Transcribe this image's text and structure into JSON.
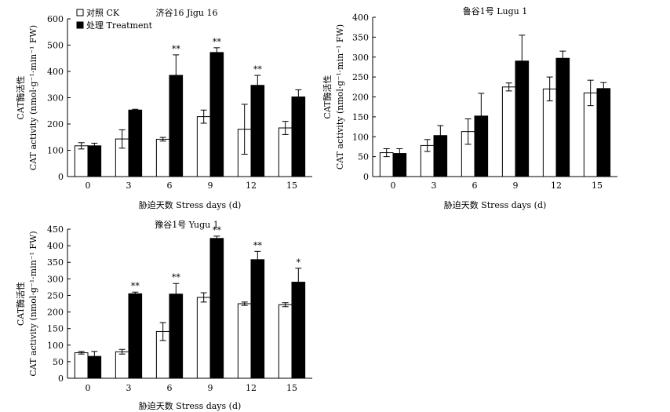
{
  "legend": {
    "ck_label": "对照 CK",
    "treatment_label": "处理 Treatment"
  },
  "colors": {
    "ck_fill": "#ffffff",
    "treatment_fill": "#000000",
    "axis": "#000000"
  },
  "chart_data": [
    {
      "type": "bar",
      "title": "济谷16 Jigu 16",
      "ylabel_cn": "CAT酶活性",
      "ylabel_en": "CAT activity (nmol·g⁻¹·min⁻¹ FW)",
      "xlabel": "胁迫天数 Stress days (d)",
      "categories": [
        "0",
        "3",
        "6",
        "9",
        "12",
        "15"
      ],
      "ylim": [
        0,
        600
      ],
      "yticks": [
        0,
        100,
        200,
        300,
        400,
        500,
        600
      ],
      "legend": "top-left inside",
      "series": [
        {
          "name": "对照 CK",
          "values": [
            117,
            143,
            142,
            228,
            180,
            185
          ],
          "errors": [
            12,
            35,
            7,
            25,
            95,
            25
          ]
        },
        {
          "name": "处理 Treatment",
          "values": [
            117,
            253,
            385,
            472,
            347,
            303
          ],
          "errors": [
            10,
            3,
            78,
            18,
            38,
            27
          ]
        }
      ],
      "significance": [
        "",
        "",
        "**",
        "**",
        "**",
        ""
      ]
    },
    {
      "type": "bar",
      "title": "鲁谷1号 Lugu 1",
      "ylabel_cn": "CAT酶活性",
      "ylabel_en": "CAT activity (nmol·g⁻¹·min⁻¹ FW)",
      "xlabel": "胁迫天数 Stress days (d)",
      "categories": [
        "0",
        "3",
        "6",
        "9",
        "12",
        "15"
      ],
      "ylim": [
        0,
        400
      ],
      "yticks": [
        0,
        50,
        100,
        150,
        200,
        250,
        300,
        350,
        400
      ],
      "series": [
        {
          "name": "对照 CK",
          "values": [
            60,
            78,
            113,
            225,
            220,
            210
          ],
          "errors": [
            10,
            15,
            32,
            10,
            30,
            32
          ]
        },
        {
          "name": "处理 Treatment",
          "values": [
            58,
            103,
            152,
            290,
            297,
            221
          ],
          "errors": [
            12,
            25,
            57,
            65,
            18,
            15
          ]
        }
      ],
      "significance": [
        "",
        "",
        "",
        "",
        "",
        ""
      ]
    },
    {
      "type": "bar",
      "title": "豫谷1号 Yugu 1",
      "ylabel_cn": "CAT酶活性",
      "ylabel_en": "CAT activity (nmol·g⁻¹·min⁻¹ FW)",
      "xlabel": "胁迫天数 Stress days (d)",
      "categories": [
        "0",
        "3",
        "6",
        "9",
        "12",
        "15"
      ],
      "ylim": [
        0,
        450
      ],
      "yticks": [
        0,
        50,
        100,
        150,
        200,
        250,
        300,
        350,
        400,
        450
      ],
      "series": [
        {
          "name": "对照 CK",
          "values": [
            77,
            80,
            141,
            244,
            225,
            222
          ],
          "errors": [
            4,
            7,
            27,
            14,
            5,
            6
          ]
        },
        {
          "name": "处理 Treatment",
          "values": [
            66,
            255,
            254,
            422,
            358,
            290
          ],
          "errors": [
            15,
            5,
            32,
            7,
            25,
            42
          ]
        }
      ],
      "significance": [
        "",
        "**",
        "**",
        "**",
        "**",
        "*"
      ]
    }
  ]
}
